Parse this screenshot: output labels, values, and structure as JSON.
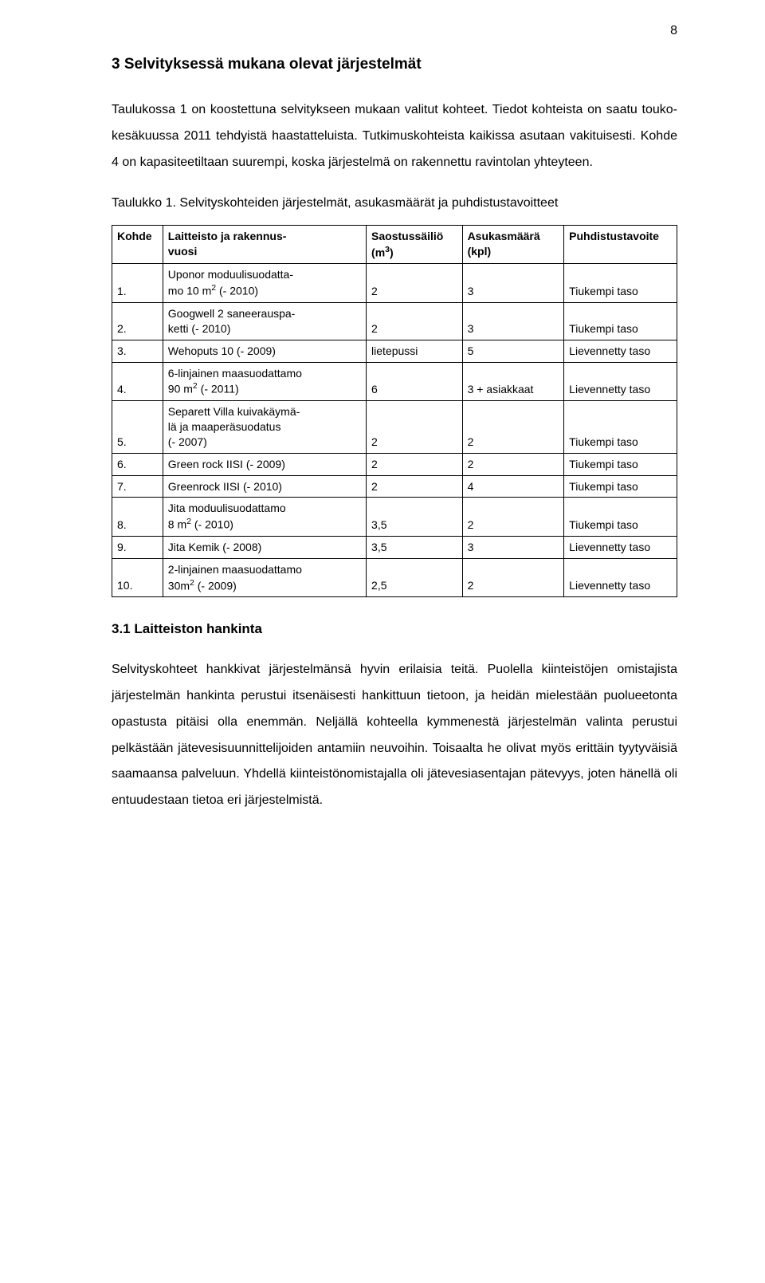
{
  "page_number": "8",
  "section": {
    "number": "3",
    "title": "Selvityksessä mukana olevat järjestelmät",
    "heading": "3   Selvityksessä mukana olevat järjestelmät"
  },
  "paragraph1": "Taulukossa 1 on koostettuna selvitykseen mukaan valitut kohteet. Tiedot kohteista on saatu touko-kesäkuussa 2011 tehdyistä haastatteluista. Tutkimuskohteista kaikissa asutaan vakituisesti. Kohde 4 on kapasiteetiltaan suurempi, koska järjestelmä on rakennettu ravintolan yhteyteen.",
  "table_caption": "Taulukko 1. Selvityskohteiden järjestelmät, asukasmäärät ja puhdistustavoitteet",
  "table": {
    "columns": [
      {
        "key": "kohde",
        "label": "Kohde"
      },
      {
        "key": "laitteisto",
        "label_line1": "Laitteisto ja rakennus-",
        "label_line2": "vuosi"
      },
      {
        "key": "saostus",
        "label_line1": "Saostussäiliö",
        "label_line2_prefix": "(m",
        "label_line2_sup": "3",
        "label_line2_suffix": ")"
      },
      {
        "key": "asukas",
        "label_line1": "Asukasmäärä",
        "label_line2": "(kpl)"
      },
      {
        "key": "puhdistus",
        "label": "Puhdistustavoite"
      }
    ],
    "rows": [
      {
        "kohde": "1.",
        "laitt_a": "Uponor moduulisuodatta-",
        "laitt_b_pre": "mo 10 m",
        "laitt_b_sup": "2",
        "laitt_b_post": " (- 2010)",
        "saos": "2",
        "asuk": "3",
        "puhd": "Tiukempi taso"
      },
      {
        "kohde": "2.",
        "laitt_a": "Googwell 2 saneerauspa-",
        "laitt_b": "ketti (- 2010)",
        "saos": "2",
        "asuk": "3",
        "puhd": "Tiukempi taso"
      },
      {
        "kohde": "3.",
        "laitt": "Wehoputs 10 (- 2009)",
        "saos": "lietepussi",
        "asuk": "5",
        "puhd": "Lievennetty taso"
      },
      {
        "kohde": "4.",
        "laitt_a": "6-linjainen maasuodattamo",
        "laitt_b_pre": "90 m",
        "laitt_b_sup": "2",
        "laitt_b_post": " (- 2011)",
        "saos": "6",
        "asuk": "3 + asiakkaat",
        "puhd": "Lievennetty taso"
      },
      {
        "kohde": "5.",
        "laitt_a": "Separett Villa kuivakäymä-",
        "laitt_b": "lä ja maaperäsuodatus",
        "laitt_c": "(- 2007)",
        "saos": "2",
        "asuk": "2",
        "puhd": "Tiukempi taso"
      },
      {
        "kohde": "6.",
        "laitt": "Green rock IISI (- 2009)",
        "saos": "2",
        "asuk": "2",
        "puhd": "Tiukempi taso"
      },
      {
        "kohde": "7.",
        "laitt": "Greenrock IISI (- 2010)",
        "saos": "2",
        "asuk": "4",
        "puhd": "Tiukempi taso"
      },
      {
        "kohde": "8.",
        "laitt_a": "Jita moduulisuodattamo",
        "laitt_b_pre": "8 m",
        "laitt_b_sup": "2",
        "laitt_b_post": " (- 2010)",
        "saos": "3,5",
        "asuk": "2",
        "puhd": "Tiukempi taso"
      },
      {
        "kohde": "9.",
        "laitt": "Jita Kemik (- 2008)",
        "saos": "3,5",
        "asuk": "3",
        "puhd": "Lievennetty taso"
      },
      {
        "kohde": "10.",
        "laitt_a": "2-linjainen maasuodattamo",
        "laitt_b_pre": "30m",
        "laitt_b_sup": "2",
        "laitt_b_post": " (- 2009)",
        "saos": "2,5",
        "asuk": "2",
        "puhd": "Lievennetty taso"
      }
    ]
  },
  "subsection": {
    "number": "3.1",
    "title": "Laitteiston hankinta",
    "heading": "3.1  Laitteiston hankinta"
  },
  "paragraph2": "Selvityskohteet hankkivat järjestelmänsä hyvin erilaisia teitä. Puolella kiinteistöjen omistajista järjestelmän hankinta perustui itsenäisesti hankittuun tietoon, ja heidän mielestään puolueetonta opastusta pitäisi olla enemmän. Neljällä kohteella kymmenestä järjestelmän valinta perustui pelkästään jätevesisuunnittelijoiden antamiin neuvoihin. Toisaalta he olivat myös erittäin tyytyväisiä saamaansa palveluun. Yhdellä kiinteistönomistajalla oli jätevesiasentajan pätevyys, joten hänellä oli entuudestaan tietoa eri järjestelmistä."
}
